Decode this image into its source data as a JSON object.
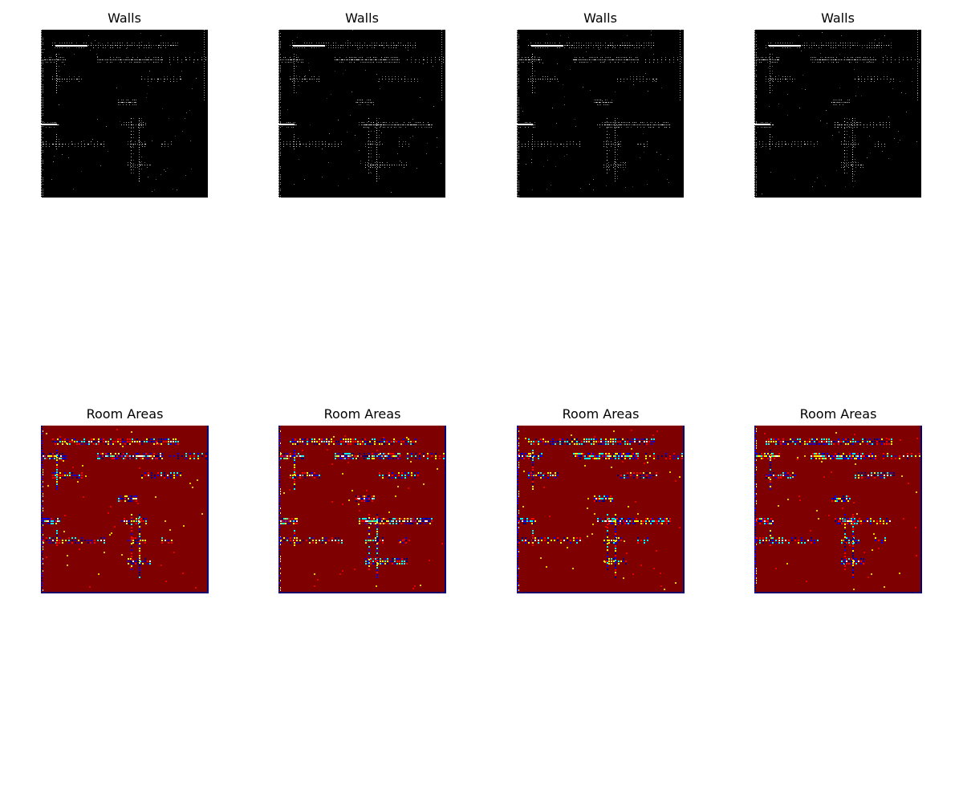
{
  "figure": {
    "panels": [
      {
        "title": "Walls",
        "kind": "walls",
        "variant": 0
      },
      {
        "title": "Walls",
        "kind": "walls",
        "variant": 1
      },
      {
        "title": "Walls",
        "kind": "walls",
        "variant": 2
      },
      {
        "title": "Walls",
        "kind": "walls",
        "variant": 3
      },
      {
        "title": "Room Areas",
        "kind": "rooms",
        "variant": 0
      },
      {
        "title": "Room Areas",
        "kind": "rooms",
        "variant": 1
      },
      {
        "title": "Room Areas",
        "kind": "rooms",
        "variant": 2
      },
      {
        "title": "Room Areas",
        "kind": "rooms",
        "variant": 3
      }
    ],
    "colors": {
      "walls_background": "#000000",
      "walls_foreground": "#ffffff",
      "rooms_background": "#7f0000",
      "rooms_palette": [
        "#00007f",
        "#0000ff",
        "#00ffff",
        "#ffff00",
        "#ff0000",
        "#ffffff"
      ]
    }
  }
}
